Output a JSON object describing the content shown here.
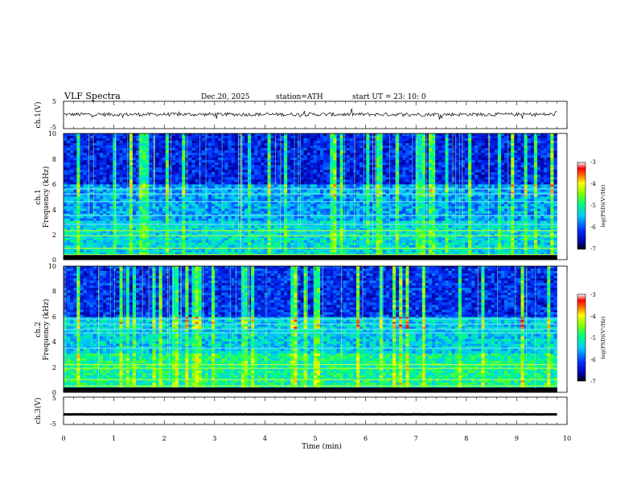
{
  "header": {
    "title": "VLF  Spectra",
    "date": "Dec.20, 2025",
    "station": "station=ATH",
    "start": "start  UT  =   23: 10: 0"
  },
  "chart_data": [
    {
      "type": "line",
      "name": "ch1-waveform",
      "ylabel": "ch.1(V)",
      "ylim": [
        -5,
        5
      ],
      "yticks": [
        "5",
        "-5"
      ],
      "xlim": [
        0,
        10
      ],
      "x_data_range": [
        0,
        9.8
      ],
      "baseline": 0.2,
      "color": "#000000"
    },
    {
      "type": "heatmap",
      "name": "ch1-spectrogram",
      "ylabel_line1": "ch.1",
      "ylabel_line2": "Frequency  (kHz)",
      "ylim": [
        0,
        10
      ],
      "yticks": [
        "0",
        "2",
        "4",
        "6",
        "8",
        "10"
      ],
      "xlim": [
        0,
        10
      ],
      "x_data_range": [
        0,
        9.8
      ],
      "colorbar": {
        "label": "log(PSD)(V²/Hz)",
        "range": [
          -7,
          -3
        ],
        "ticks": [
          "-3",
          "-4",
          "-5",
          "-6",
          "-7"
        ]
      },
      "bands_khz": [
        0.4,
        0.9,
        1.9,
        2.3,
        2.8,
        3.5,
        4.6,
        5.2,
        5.6
      ],
      "pattern": "noise-ch1"
    },
    {
      "type": "heatmap",
      "name": "ch2-spectrogram",
      "ylabel_line1": "ch.2",
      "ylabel_line2": "Frequency  (kHz)",
      "ylim": [
        0,
        10
      ],
      "yticks": [
        "0",
        "2",
        "4",
        "6",
        "8",
        "10"
      ],
      "xlim": [
        0,
        10
      ],
      "x_data_range": [
        0,
        9.8
      ],
      "colorbar": {
        "label": "log(PSD)(V²/Hz)",
        "range": [
          -7,
          -3
        ],
        "ticks": [
          "-3",
          "-4",
          "-5",
          "-6",
          "-7"
        ]
      },
      "bands_khz": [
        0.5,
        1.0,
        1.9,
        2.2,
        3.5,
        4.7,
        5.0,
        5.4,
        5.8
      ],
      "pattern": "noise-ch2"
    },
    {
      "type": "line",
      "name": "ch3-waveform",
      "ylabel": "ch.3(V)",
      "ylim": [
        -5,
        5
      ],
      "yticks": [
        "5",
        "-5"
      ],
      "xlim": [
        0,
        10
      ],
      "x_data_range": [
        0,
        9.8
      ],
      "baseline": -1.3,
      "color": "#000000"
    }
  ],
  "xaxis": {
    "label": "Time  (min)",
    "ticks": [
      "0",
      "1",
      "2",
      "3",
      "4",
      "5",
      "6",
      "7",
      "8",
      "9",
      "10"
    ]
  }
}
